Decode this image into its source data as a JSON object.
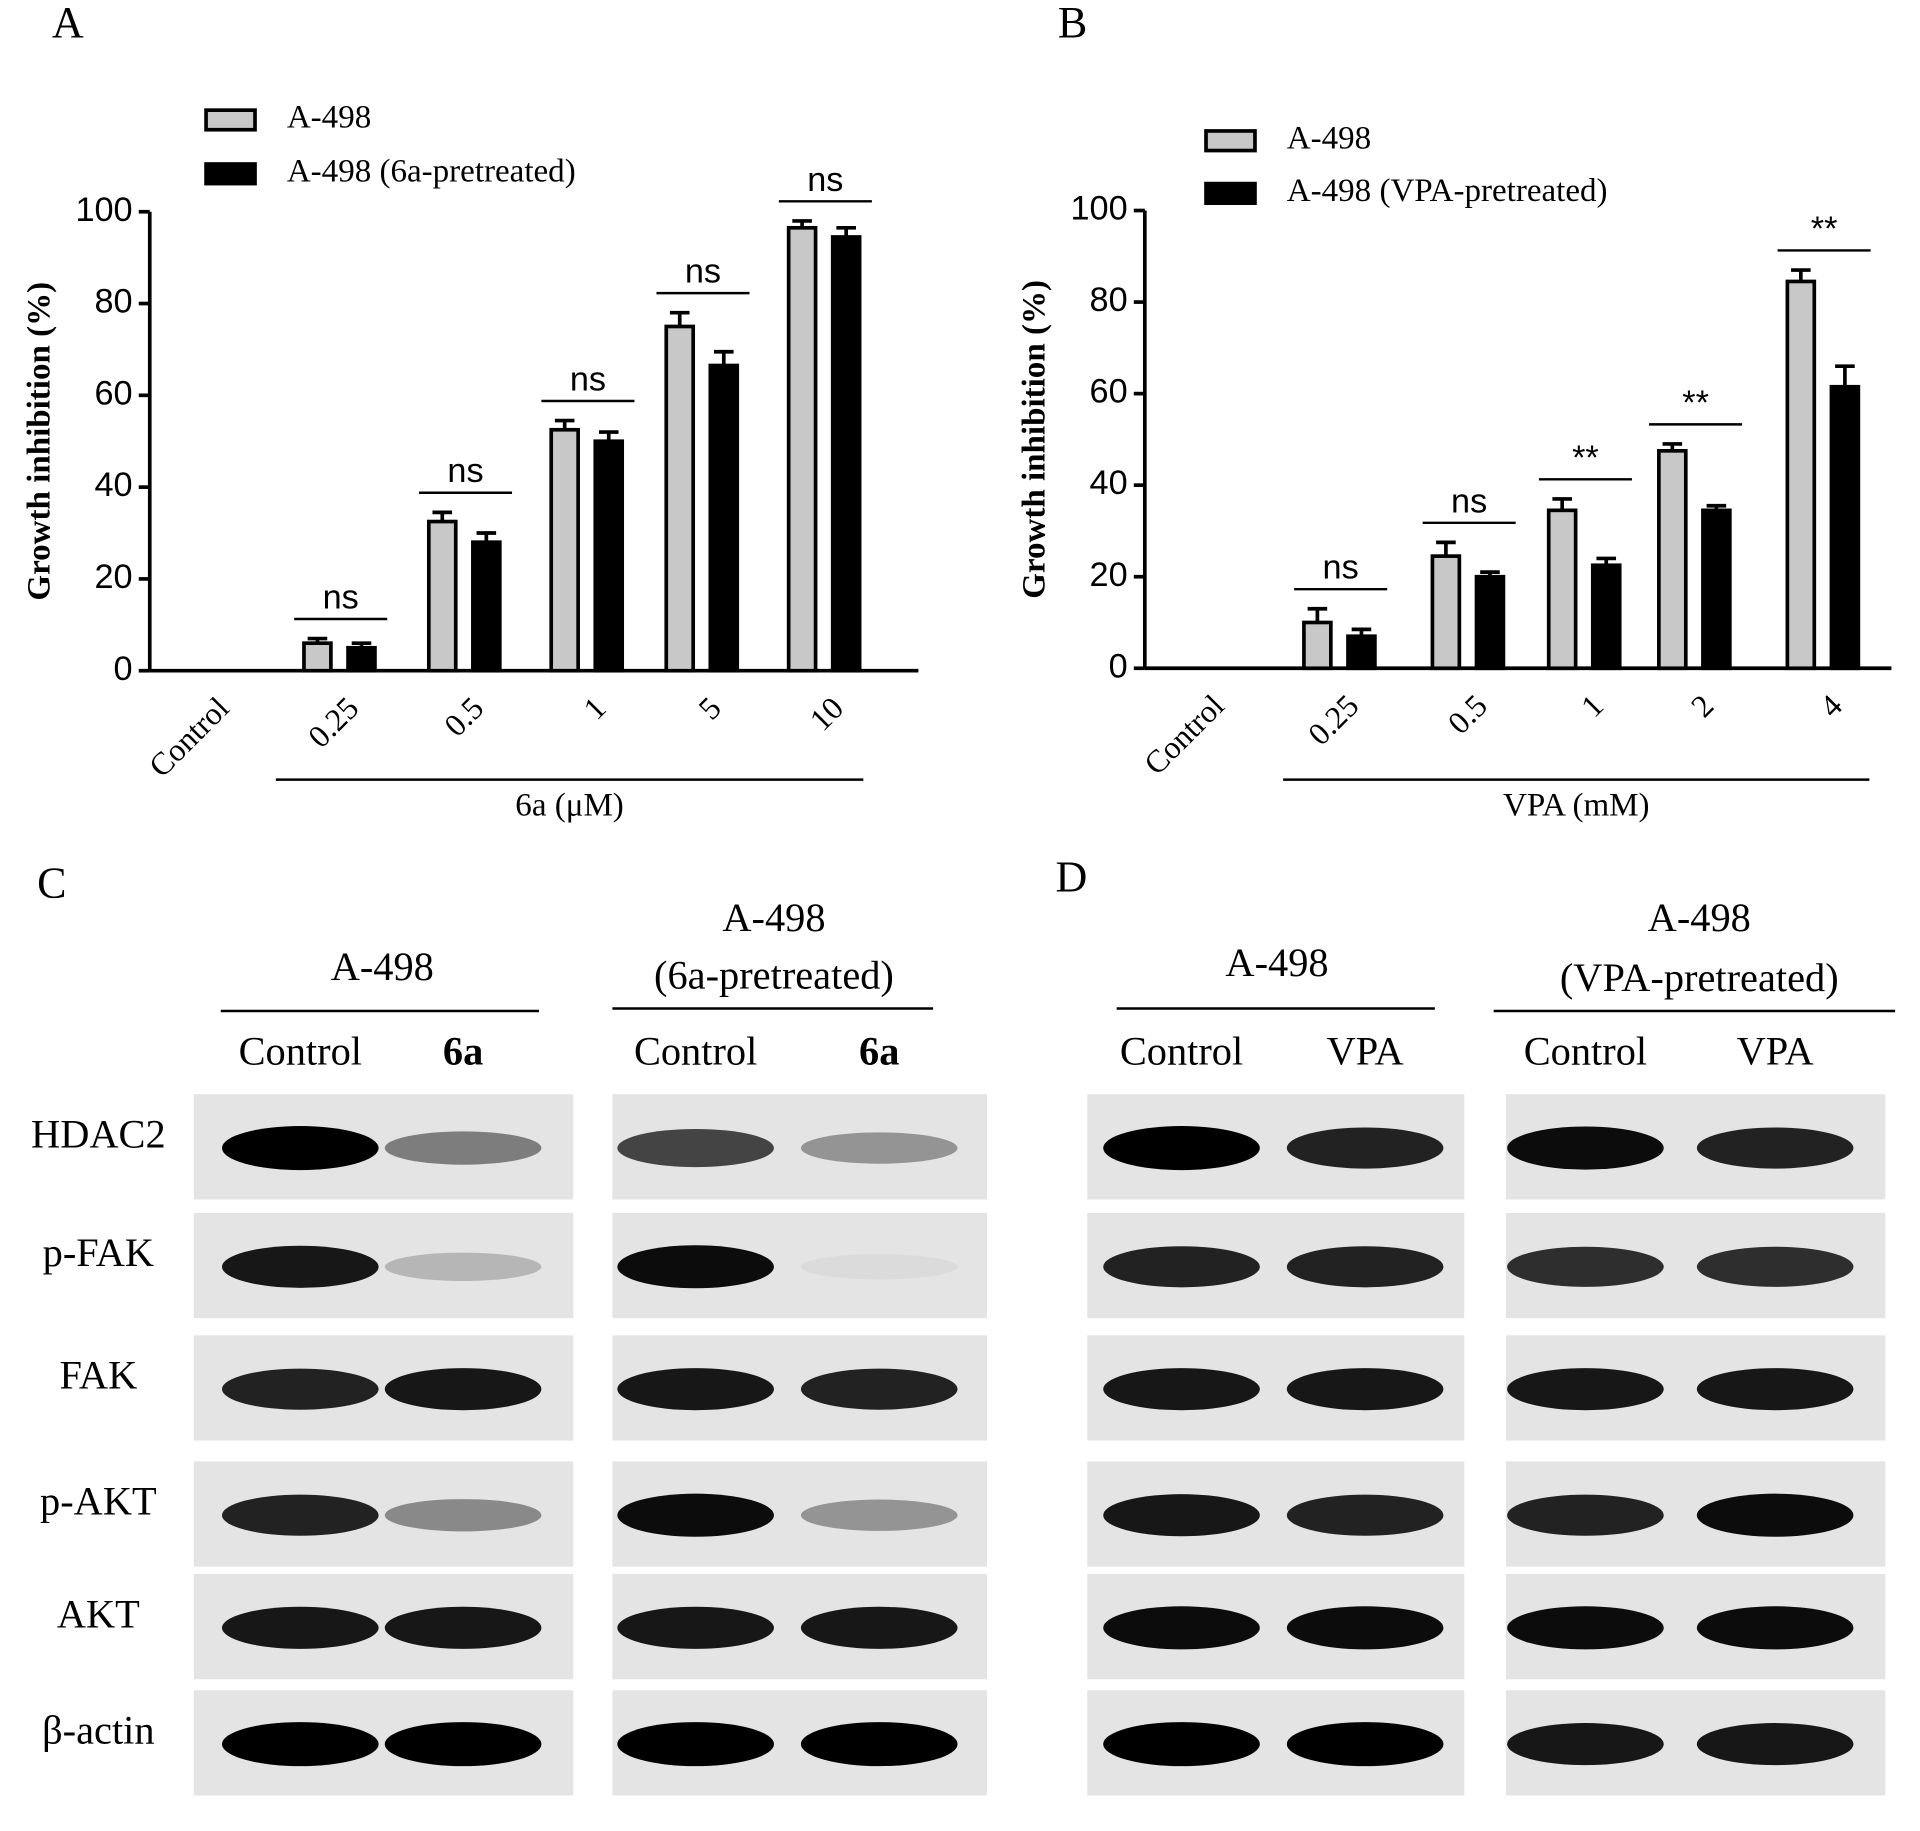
{
  "chart_data": [
    {
      "type": "bar",
      "panel": "A",
      "ylabel": "Growth inhibition (%)",
      "xlabel": "6a (μM)",
      "categories": [
        "Control",
        "0.25",
        "0.5",
        "1",
        "5",
        "10"
      ],
      "series": [
        {
          "name": "A-498",
          "color": "#c8c8c8",
          "values": [
            null,
            6,
            32.5,
            52.5,
            75,
            96.5
          ],
          "errors": [
            null,
            1,
            2,
            2,
            3,
            1.5
          ]
        },
        {
          "name": "A-498 (6a-pretreated)",
          "color": "#000000",
          "values": [
            null,
            5,
            28,
            50,
            66.5,
            94.5
          ],
          "errors": [
            null,
            1,
            2,
            2,
            3,
            2
          ]
        }
      ],
      "significance": [
        null,
        "ns",
        "ns",
        "ns",
        "ns",
        "ns"
      ],
      "ylim": [
        0,
        100
      ],
      "yticks": [
        0,
        20,
        40,
        60,
        80,
        100
      ]
    },
    {
      "type": "bar",
      "panel": "B",
      "ylabel": "Growth inhibition (%)",
      "xlabel": "VPA (mM)",
      "categories": [
        "Control",
        "0.25",
        "0.5",
        "1",
        "2",
        "4"
      ],
      "series": [
        {
          "name": "A-498",
          "color": "#c8c8c8",
          "values": [
            null,
            10,
            24.5,
            34.5,
            47.5,
            84.5
          ],
          "errors": [
            null,
            3,
            3,
            2.5,
            1.5,
            2.5
          ]
        },
        {
          "name": "A-498 (VPA-pretreated)",
          "color": "#000000",
          "values": [
            null,
            7,
            20,
            22.5,
            34.5,
            61.5
          ],
          "errors": [
            null,
            1.5,
            1,
            1.5,
            1,
            4.5
          ]
        }
      ],
      "significance": [
        null,
        "ns",
        "ns",
        "**",
        "**",
        "**"
      ],
      "ylim": [
        0,
        100
      ],
      "yticks": [
        0,
        20,
        40,
        60,
        80,
        100
      ]
    }
  ],
  "blots": [
    {
      "panel": "C",
      "rows": [
        "HDAC2",
        "p-FAK",
        "FAK",
        "p-AKT",
        "AKT",
        "β-actin"
      ],
      "groups": [
        {
          "title": [
            "A-498"
          ],
          "lanes": [
            "Control",
            "6a"
          ]
        },
        {
          "title": [
            "A-498",
            "(6a-pretreated)"
          ],
          "lanes": [
            "Control",
            "6a"
          ]
        }
      ]
    },
    {
      "panel": "D",
      "groups": [
        {
          "title": [
            "A-498"
          ],
          "lanes": [
            "Control",
            "VPA"
          ]
        },
        {
          "title": [
            "A-498",
            "(VPA-pretreated)"
          ],
          "lanes": [
            "Control",
            "VPA"
          ]
        }
      ]
    }
  ]
}
